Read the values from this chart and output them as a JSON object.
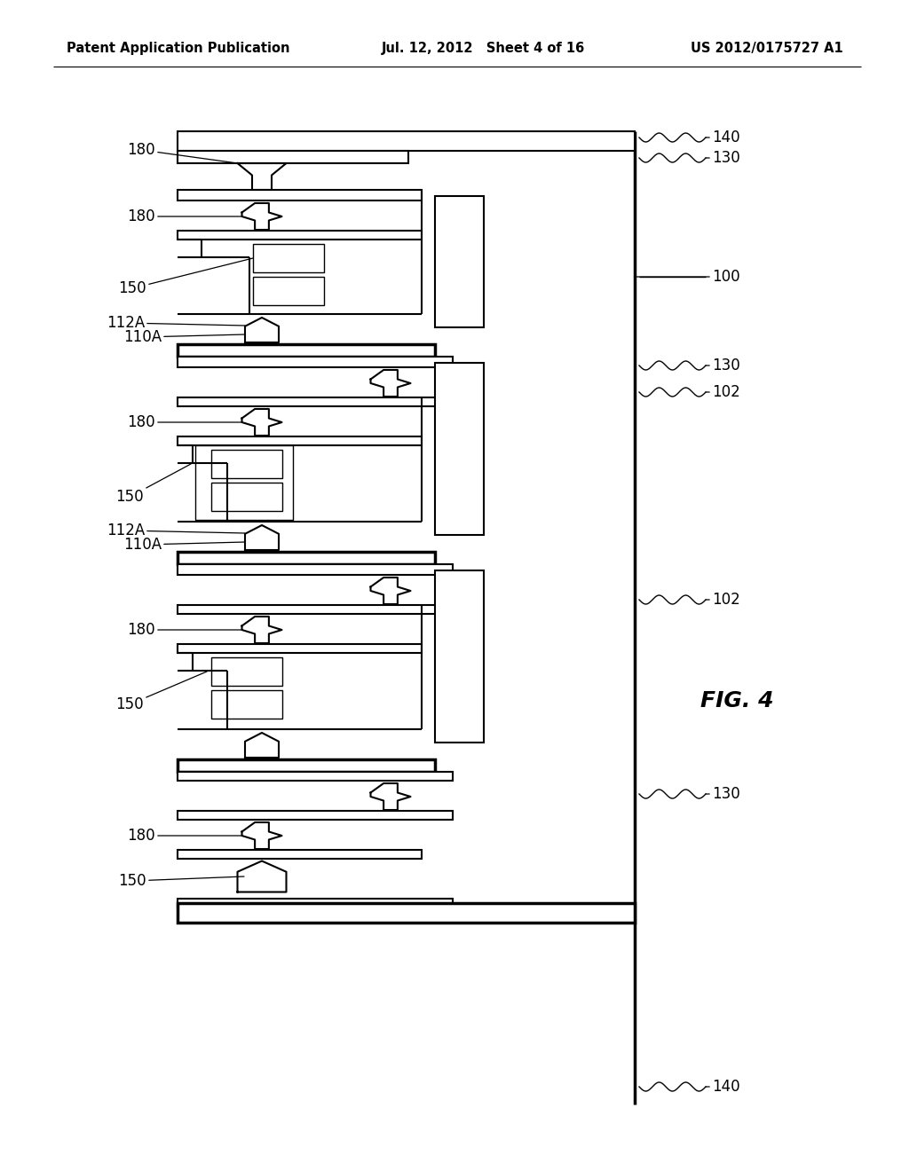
{
  "title_left": "Patent Application Publication",
  "title_mid": "Jul. 12, 2012   Sheet 4 of 16",
  "title_right": "US 2012/0175727 A1",
  "fig_label": "FIG. 4",
  "background": "#ffffff",
  "line_color": "#000000",
  "fig_width": 10.24,
  "fig_height": 13.2
}
